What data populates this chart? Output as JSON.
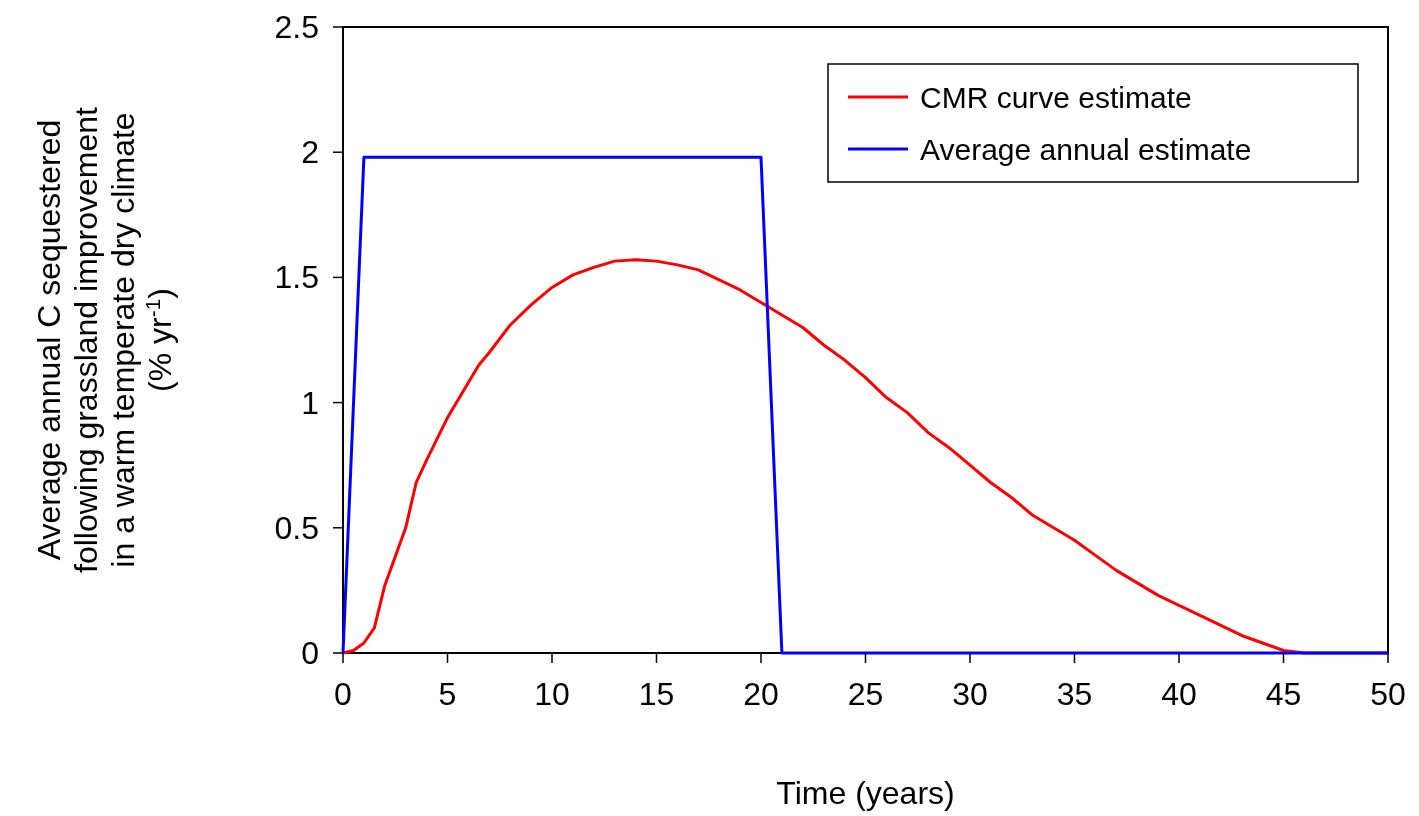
{
  "chart_data": {
    "type": "line",
    "xlabel": "Time (years)",
    "ylabel": "Average annual C sequestered\nfollowing grassland improvement\nin a warm temperate dry climate\n(% yr$^{-1}$)",
    "xlim": [
      0,
      50
    ],
    "xticks": [
      0,
      5,
      10,
      15,
      20,
      25,
      30,
      35,
      40,
      45,
      50
    ],
    "ylim": [
      0,
      2.5
    ],
    "yticks": [
      0,
      0.5,
      1,
      1.5,
      2,
      2.5
    ],
    "grid": false,
    "legend": "top right",
    "marker": "none",
    "line_style": "solid",
    "series": [
      {
        "name": "CMR curve estimate",
        "color": "#ff0000",
        "x": [
          0,
          0.5,
          1,
          1.5,
          2,
          3,
          3.5,
          4,
          5,
          6,
          6.5,
          7,
          8,
          9,
          10,
          11,
          12,
          13,
          14,
          15,
          16,
          17,
          18,
          19,
          20,
          21,
          22,
          23,
          24,
          25,
          26,
          27,
          28,
          29,
          30,
          31,
          32,
          33,
          34,
          35,
          36,
          37,
          38,
          39,
          40,
          41,
          42,
          43,
          44,
          45,
          46,
          50
        ],
        "values": [
          0,
          0.01,
          0.04,
          0.1,
          0.27,
          0.5,
          0.68,
          0.77,
          0.94,
          1.08,
          1.15,
          1.2,
          1.31,
          1.39,
          1.46,
          1.51,
          1.54,
          1.565,
          1.57,
          1.565,
          1.55,
          1.53,
          1.49,
          1.45,
          1.4,
          1.35,
          1.3,
          1.23,
          1.17,
          1.1,
          1.02,
          0.96,
          0.88,
          0.82,
          0.75,
          0.68,
          0.62,
          0.55,
          0.5,
          0.45,
          0.39,
          0.33,
          0.28,
          0.23,
          0.19,
          0.15,
          0.11,
          0.07,
          0.04,
          0.01,
          0,
          0
        ]
      },
      {
        "name": "Average annual estimate",
        "color": "#0000ff",
        "x": [
          0,
          1,
          20,
          21,
          50
        ],
        "values": [
          0,
          1.98,
          1.98,
          0,
          0
        ]
      }
    ]
  }
}
